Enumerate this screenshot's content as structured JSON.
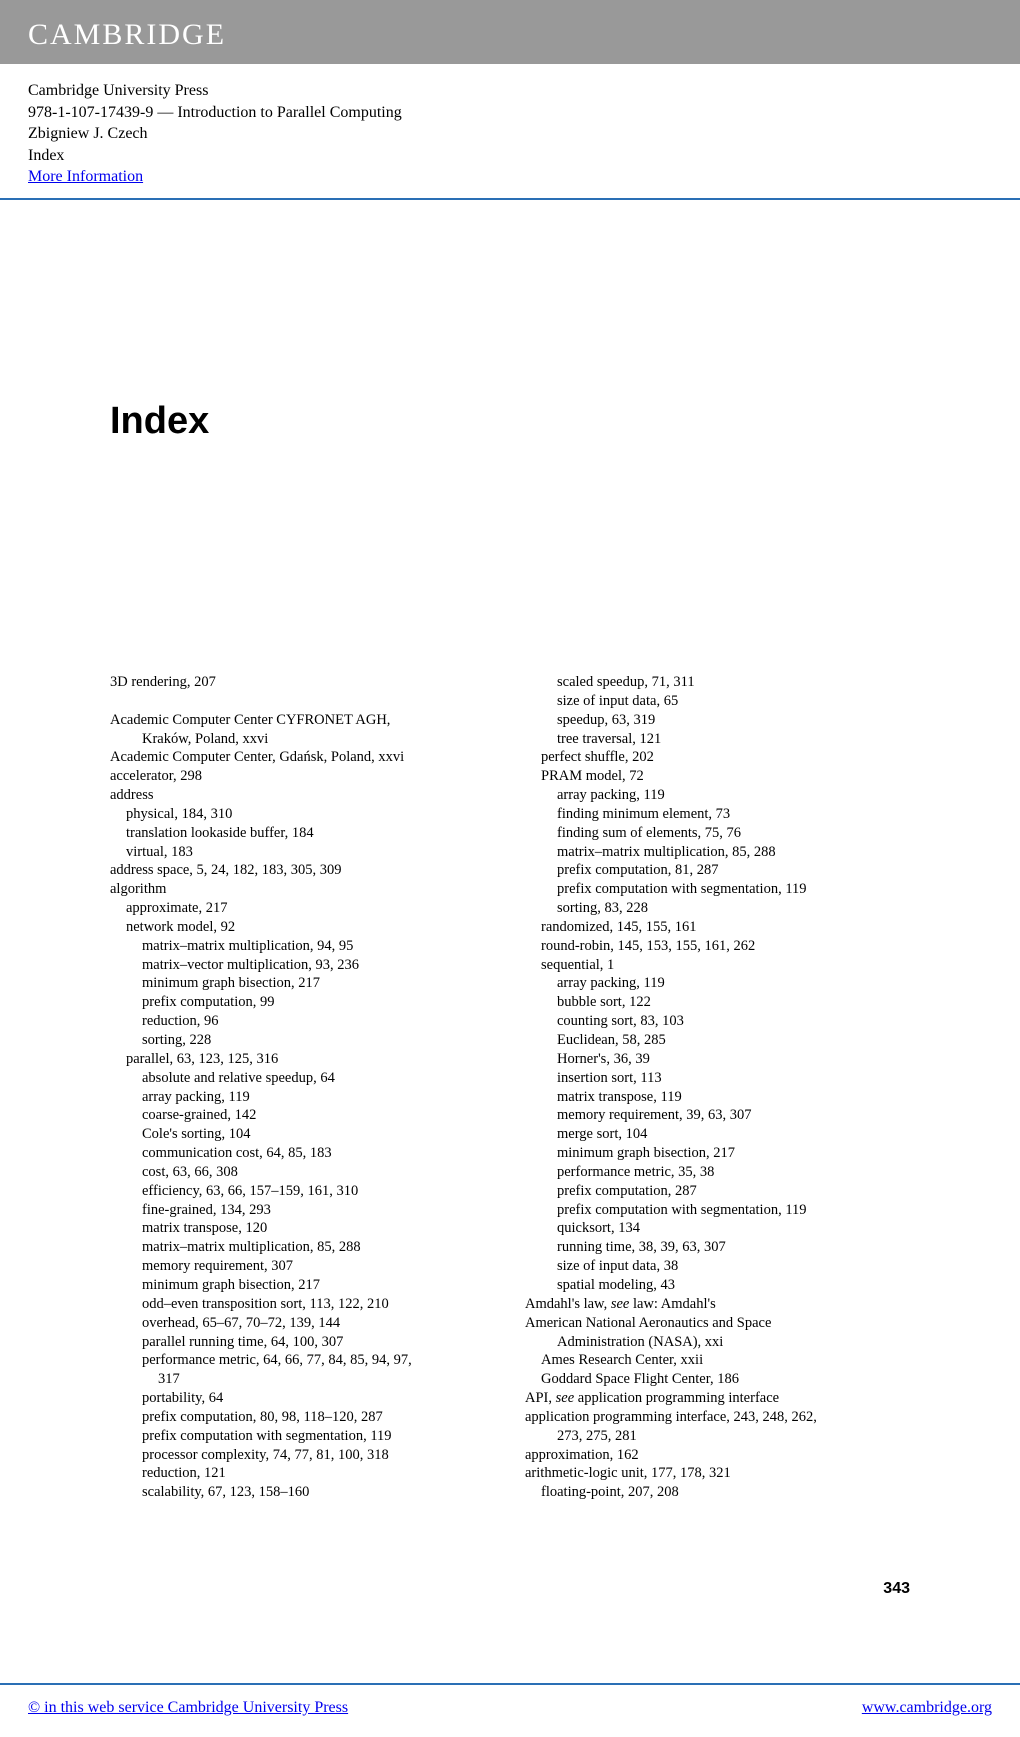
{
  "banner": {
    "logo": "CAMBRIDGE"
  },
  "meta": {
    "publisher": "Cambridge University Press",
    "isbn_title": "978-1-107-17439-9 — Introduction to Parallel Computing",
    "author": "Zbigniew J. Czech",
    "section": "Index",
    "more_info": "More Information"
  },
  "title": "Index",
  "page_number": "343",
  "footer": {
    "copyright": "© in this web service Cambridge University Press",
    "url": "www.cambridge.org"
  },
  "index": {
    "col1": [
      {
        "lvl": 0,
        "text": "3D rendering, 207"
      },
      {
        "lvl": 0,
        "text": " "
      },
      {
        "lvl": 0,
        "text": "Academic Computer Center CYFRONET AGH,"
      },
      {
        "lvl": 2,
        "text": "Kraków, Poland, xxvi"
      },
      {
        "lvl": 0,
        "text": "Academic Computer Center, Gdańsk, Poland, xxvi"
      },
      {
        "lvl": 0,
        "text": "accelerator, 298"
      },
      {
        "lvl": 0,
        "text": "address"
      },
      {
        "lvl": 1,
        "text": "physical, 184, 310"
      },
      {
        "lvl": 1,
        "text": "translation lookaside buffer, 184"
      },
      {
        "lvl": 1,
        "text": "virtual, 183"
      },
      {
        "lvl": 0,
        "text": "address space, 5, 24, 182, 183, 305, 309"
      },
      {
        "lvl": 0,
        "text": "algorithm"
      },
      {
        "lvl": 1,
        "text": "approximate, 217"
      },
      {
        "lvl": 1,
        "text": "network model, 92"
      },
      {
        "lvl": 2,
        "text": "matrix–matrix multiplication, 94, 95"
      },
      {
        "lvl": 2,
        "text": "matrix–vector multiplication, 93, 236"
      },
      {
        "lvl": 2,
        "text": "minimum graph bisection, 217"
      },
      {
        "lvl": 2,
        "text": "prefix computation, 99"
      },
      {
        "lvl": 2,
        "text": "reduction, 96"
      },
      {
        "lvl": 2,
        "text": "sorting, 228"
      },
      {
        "lvl": 1,
        "text": "parallel, 63, 123, 125, 316"
      },
      {
        "lvl": 2,
        "text": "absolute and relative speedup, 64"
      },
      {
        "lvl": 2,
        "text": "array packing, 119"
      },
      {
        "lvl": 2,
        "text": "coarse-grained, 142"
      },
      {
        "lvl": 2,
        "text": "Cole's sorting, 104"
      },
      {
        "lvl": 2,
        "text": "communication cost, 64, 85, 183"
      },
      {
        "lvl": 2,
        "text": "cost, 63, 66, 308"
      },
      {
        "lvl": 2,
        "text": "efficiency, 63, 66, 157–159, 161, 310"
      },
      {
        "lvl": 2,
        "text": "fine-grained, 134, 293"
      },
      {
        "lvl": 2,
        "text": "matrix transpose, 120"
      },
      {
        "lvl": 2,
        "text": "matrix–matrix multiplication, 85, 288"
      },
      {
        "lvl": 2,
        "text": "memory requirement, 307"
      },
      {
        "lvl": 2,
        "text": "minimum graph bisection, 217"
      },
      {
        "lvl": 2,
        "text": "odd–even transposition sort, 113, 122, 210"
      },
      {
        "lvl": 2,
        "text": "overhead, 65–67, 70–72, 139, 144"
      },
      {
        "lvl": 2,
        "text": "parallel running time, 64, 100, 307"
      },
      {
        "lvl": 2,
        "text": "performance metric, 64, 66, 77, 84, 85, 94, 97,"
      },
      {
        "lvl": 3,
        "text": "317"
      },
      {
        "lvl": 2,
        "text": "portability, 64"
      },
      {
        "lvl": 2,
        "text": "prefix computation, 80, 98, 118–120, 287"
      },
      {
        "lvl": 2,
        "text": "prefix computation with segmentation, 119"
      },
      {
        "lvl": 2,
        "text": "processor complexity, 74, 77, 81, 100, 318"
      },
      {
        "lvl": 2,
        "text": "reduction, 121"
      },
      {
        "lvl": 2,
        "text": "scalability, 67, 123, 158–160"
      }
    ],
    "col2": [
      {
        "lvl": 2,
        "text": "scaled speedup, 71, 311"
      },
      {
        "lvl": 2,
        "text": "size of input data, 65"
      },
      {
        "lvl": 2,
        "text": "speedup, 63, 319"
      },
      {
        "lvl": 2,
        "text": "tree traversal, 121"
      },
      {
        "lvl": 1,
        "text": "perfect shuffle, 202"
      },
      {
        "lvl": 1,
        "text": "PRAM model, 72"
      },
      {
        "lvl": 2,
        "text": "array packing, 119"
      },
      {
        "lvl": 2,
        "text": "finding minimum element, 73"
      },
      {
        "lvl": 2,
        "text": "finding sum of elements, 75, 76"
      },
      {
        "lvl": 2,
        "text": "matrix–matrix multiplication, 85, 288"
      },
      {
        "lvl": 2,
        "text": "prefix computation, 81, 287"
      },
      {
        "lvl": 2,
        "text": "prefix computation with segmentation, 119"
      },
      {
        "lvl": 2,
        "text": "sorting, 83, 228"
      },
      {
        "lvl": 1,
        "text": "randomized, 145, 155, 161"
      },
      {
        "lvl": 1,
        "text": "round-robin, 145, 153, 155, 161, 262"
      },
      {
        "lvl": 1,
        "text": "sequential, 1"
      },
      {
        "lvl": 2,
        "text": "array packing, 119"
      },
      {
        "lvl": 2,
        "text": "bubble sort, 122"
      },
      {
        "lvl": 2,
        "text": "counting sort, 83, 103"
      },
      {
        "lvl": 2,
        "text": "Euclidean, 58, 285"
      },
      {
        "lvl": 2,
        "text": "Horner's, 36, 39"
      },
      {
        "lvl": 2,
        "text": "insertion sort, 113"
      },
      {
        "lvl": 2,
        "text": "matrix transpose, 119"
      },
      {
        "lvl": 2,
        "text": "memory requirement, 39, 63, 307"
      },
      {
        "lvl": 2,
        "text": "merge sort, 104"
      },
      {
        "lvl": 2,
        "text": "minimum graph bisection, 217"
      },
      {
        "lvl": 2,
        "text": "performance metric, 35, 38"
      },
      {
        "lvl": 2,
        "text": "prefix computation, 287"
      },
      {
        "lvl": 2,
        "text": "prefix computation with segmentation, 119"
      },
      {
        "lvl": 2,
        "text": "quicksort, 134"
      },
      {
        "lvl": 2,
        "text": "running time, 38, 39, 63, 307"
      },
      {
        "lvl": 2,
        "text": "size of input data, 38"
      },
      {
        "lvl": 2,
        "text": "spatial modeling, 43"
      },
      {
        "lvl": 0,
        "html": "Amdahl's law, <span class='em'>see</span> law: Amdahl's"
      },
      {
        "lvl": 0,
        "text": "American National Aeronautics and Space"
      },
      {
        "lvl": 2,
        "text": "Administration (NASA), xxi"
      },
      {
        "lvl": 1,
        "text": "Ames Research Center, xxii"
      },
      {
        "lvl": 1,
        "text": "Goddard Space Flight Center, 186"
      },
      {
        "lvl": 0,
        "html": "API, <span class='em'>see</span> application programming interface"
      },
      {
        "lvl": 0,
        "text": "application programming interface, 243, 248, 262,"
      },
      {
        "lvl": 2,
        "text": "273, 275, 281"
      },
      {
        "lvl": 0,
        "text": "approximation, 162"
      },
      {
        "lvl": 0,
        "text": "arithmetic-logic unit, 177, 178, 321"
      },
      {
        "lvl": 1,
        "text": "floating-point, 207, 208"
      }
    ]
  }
}
